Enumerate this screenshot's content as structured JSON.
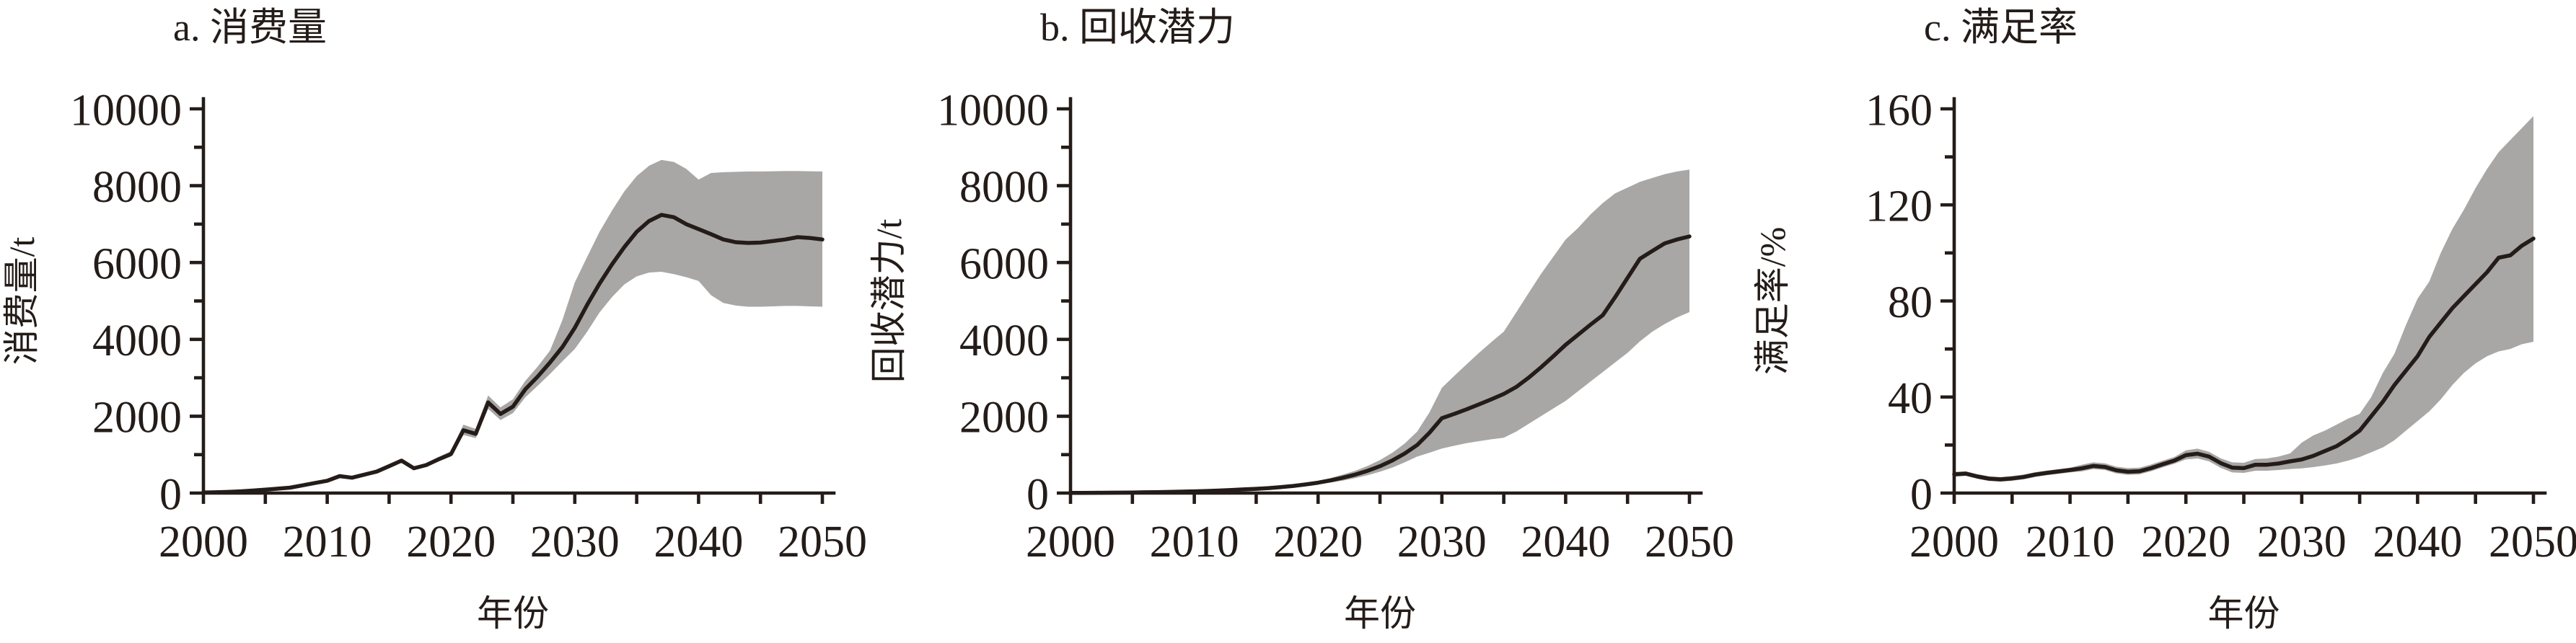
{
  "figure": {
    "background": "#ffffff",
    "ink_color": "#241c18",
    "band_color": "#a9a7a5",
    "xlabel": "年份",
    "x_tick_labels": [
      "2000",
      "2010",
      "2020",
      "2030",
      "2040",
      "2050"
    ],
    "panels": [
      {
        "title": "a. 消费量",
        "ylabel": "消费量/t",
        "y_tick_labels": [
          "0",
          "2000",
          "4000",
          "6000",
          "8000",
          "10000"
        ]
      },
      {
        "title": "b. 回收潜力",
        "ylabel": "回收潜力/t",
        "y_tick_labels": [
          "0",
          "2000",
          "4000",
          "6000",
          "8000",
          "10000"
        ]
      },
      {
        "title": "c. 满足率",
        "ylabel": "满足率/%",
        "y_tick_labels": [
          "0",
          "40",
          "80",
          "120",
          "160"
        ]
      }
    ]
  },
  "chart_data": [
    {
      "type": "line",
      "title": "a. 消费量",
      "xlabel": "年份",
      "ylabel": "消费量/t",
      "xlim": [
        2000,
        2050
      ],
      "ylim": [
        0,
        10000
      ],
      "ytick_major": 2000,
      "ytick_minor": 1000,
      "xtick_minor": 5,
      "legend": "none",
      "grid": false,
      "x": [
        2000,
        2001,
        2002,
        2003,
        2004,
        2005,
        2006,
        2007,
        2008,
        2009,
        2010,
        2011,
        2012,
        2013,
        2014,
        2015,
        2016,
        2017,
        2018,
        2019,
        2020,
        2021,
        2022,
        2023,
        2024,
        2025,
        2026,
        2027,
        2028,
        2029,
        2030,
        2031,
        2032,
        2033,
        2034,
        2035,
        2036,
        2037,
        2038,
        2039,
        2040,
        2041,
        2042,
        2043,
        2044,
        2045,
        2046,
        2047,
        2048,
        2049,
        2050
      ],
      "values": [
        15,
        20,
        30,
        45,
        65,
        90,
        115,
        140,
        200,
        260,
        320,
        440,
        400,
        480,
        560,
        700,
        845,
        645,
        730,
        880,
        1015,
        1635,
        1540,
        2360,
        2060,
        2250,
        2700,
        3030,
        3400,
        3800,
        4300,
        4900,
        5450,
        5950,
        6400,
        6800,
        7080,
        7240,
        7180,
        7000,
        6870,
        6740,
        6600,
        6530,
        6510,
        6520,
        6560,
        6600,
        6660,
        6640,
        6600
      ],
      "band_lo": [
        10,
        15,
        25,
        40,
        60,
        85,
        110,
        115,
        175,
        235,
        295,
        405,
        365,
        445,
        525,
        665,
        805,
        610,
        695,
        820,
        950,
        1510,
        1430,
        2190,
        1900,
        2080,
        2490,
        2790,
        3100,
        3430,
        3750,
        4200,
        4700,
        5100,
        5430,
        5640,
        5740,
        5760,
        5700,
        5620,
        5520,
        5150,
        4950,
        4880,
        4850,
        4850,
        4860,
        4870,
        4870,
        4860,
        4850
      ],
      "band_hi": [
        20,
        25,
        35,
        50,
        70,
        95,
        120,
        165,
        225,
        285,
        345,
        480,
        440,
        520,
        600,
        740,
        885,
        685,
        770,
        940,
        1090,
        1780,
        1670,
        2540,
        2230,
        2440,
        2920,
        3290,
        3710,
        4500,
        5480,
        6150,
        6800,
        7350,
        7850,
        8250,
        8520,
        8670,
        8620,
        8440,
        8160,
        8330,
        8350,
        8360,
        8370,
        8370,
        8375,
        8380,
        8380,
        8375,
        8370
      ]
    },
    {
      "type": "line",
      "title": "b. 回收潜力",
      "xlabel": "年份",
      "ylabel": "回收潜力/t",
      "xlim": [
        2000,
        2050
      ],
      "ylim": [
        0,
        10000
      ],
      "ytick_major": 2000,
      "ytick_minor": 1000,
      "xtick_minor": 5,
      "legend": "none",
      "grid": false,
      "x": [
        2000,
        2001,
        2002,
        2003,
        2004,
        2005,
        2006,
        2007,
        2008,
        2009,
        2010,
        2011,
        2012,
        2013,
        2014,
        2015,
        2016,
        2017,
        2018,
        2019,
        2020,
        2021,
        2022,
        2023,
        2024,
        2025,
        2026,
        2027,
        2028,
        2029,
        2030,
        2031,
        2032,
        2033,
        2034,
        2035,
        2036,
        2037,
        2038,
        2039,
        2040,
        2041,
        2042,
        2043,
        2044,
        2045,
        2046,
        2047,
        2048,
        2049,
        2050
      ],
      "values": [
        5,
        6,
        8,
        10,
        12,
        15,
        20,
        25,
        30,
        38,
        45,
        55,
        65,
        80,
        95,
        110,
        130,
        155,
        185,
        225,
        270,
        330,
        400,
        480,
        580,
        700,
        850,
        1030,
        1250,
        1570,
        1950,
        2060,
        2180,
        2310,
        2440,
        2580,
        2760,
        3000,
        3270,
        3560,
        3860,
        4120,
        4380,
        4630,
        5100,
        5600,
        6100,
        6300,
        6500,
        6600,
        6680
      ],
      "band_lo": [
        3,
        4,
        6,
        8,
        10,
        12,
        17,
        21,
        26,
        33,
        40,
        48,
        57,
        70,
        85,
        95,
        112,
        132,
        158,
        190,
        225,
        272,
        325,
        390,
        465,
        555,
        665,
        800,
        950,
        1050,
        1160,
        1230,
        1300,
        1350,
        1400,
        1440,
        1600,
        1800,
        2000,
        2200,
        2400,
        2650,
        2900,
        3150,
        3400,
        3650,
        3950,
        4200,
        4400,
        4570,
        4710
      ],
      "band_hi": [
        7,
        8,
        10,
        12,
        14,
        18,
        23,
        29,
        34,
        43,
        50,
        62,
        73,
        90,
        108,
        128,
        152,
        182,
        218,
        265,
        320,
        392,
        480,
        580,
        705,
        860,
        1050,
        1290,
        1600,
        2100,
        2740,
        3050,
        3350,
        3650,
        3930,
        4200,
        4700,
        5200,
        5700,
        6150,
        6600,
        6900,
        7250,
        7550,
        7800,
        7950,
        8100,
        8200,
        8300,
        8370,
        8420
      ]
    },
    {
      "type": "line",
      "title": "c. 满足率",
      "xlabel": "年份",
      "ylabel": "满足率/%",
      "xlim": [
        2000,
        2050
      ],
      "ylim": [
        0,
        160
      ],
      "ytick_major": 40,
      "ytick_minor": 20,
      "xtick_minor": 5,
      "legend": "none",
      "grid": false,
      "x": [
        2000,
        2001,
        2002,
        2003,
        2004,
        2005,
        2006,
        2007,
        2008,
        2009,
        2010,
        2011,
        2012,
        2013,
        2014,
        2015,
        2016,
        2017,
        2018,
        2019,
        2020,
        2021,
        2022,
        2023,
        2024,
        2025,
        2026,
        2027,
        2028,
        2029,
        2030,
        2031,
        2032,
        2033,
        2034,
        2035,
        2036,
        2037,
        2038,
        2039,
        2040,
        2041,
        2042,
        2043,
        2044,
        2045,
        2046,
        2047,
        2048,
        2049,
        2050
      ],
      "values": [
        7.8,
        8.1,
        6.9,
        6.0,
        5.7,
        6.1,
        6.7,
        7.7,
        8.4,
        9.0,
        9.6,
        10.3,
        11.3,
        10.9,
        9.5,
        8.9,
        9.1,
        10.4,
        12.0,
        13.5,
        15.8,
        16.4,
        15.2,
        12.5,
        10.6,
        10.4,
        11.8,
        11.8,
        12.3,
        13.2,
        14.0,
        15.5,
        17.5,
        19.5,
        22.5,
        26,
        32,
        38,
        45,
        51,
        57,
        65,
        71,
        77,
        82,
        87,
        92,
        98,
        99,
        103,
        106
      ],
      "band_lo": [
        6.8,
        7.1,
        5.9,
        5.0,
        4.7,
        5.1,
        5.7,
        6.7,
        7.4,
        8.0,
        8.6,
        9.0,
        10.0,
        9.6,
        8.2,
        7.6,
        7.8,
        9.1,
        10.7,
        12.2,
        14.0,
        14.4,
        13.2,
        10.5,
        8.6,
        8.4,
        9.3,
        9.3,
        9.6,
        10.0,
        10.3,
        10.8,
        11.5,
        12.3,
        13.5,
        15,
        17,
        19,
        22,
        26,
        30,
        34,
        39,
        45,
        50,
        54,
        57,
        59,
        60,
        62,
        63
      ],
      "band_hi": [
        8.8,
        9.1,
        7.9,
        7.0,
        6.7,
        7.1,
        7.7,
        8.7,
        9.4,
        10.0,
        10.6,
        11.8,
        12.8,
        12.4,
        11.0,
        10.4,
        10.6,
        11.9,
        13.5,
        15.0,
        17.8,
        18.5,
        17.2,
        14.5,
        12.8,
        12.6,
        14.2,
        14.4,
        15.2,
        16.5,
        21,
        24,
        26,
        28.5,
        31,
        33,
        40,
        50,
        58,
        70,
        81,
        88,
        100,
        110,
        118,
        127,
        135,
        142,
        147,
        152,
        157
      ]
    }
  ]
}
